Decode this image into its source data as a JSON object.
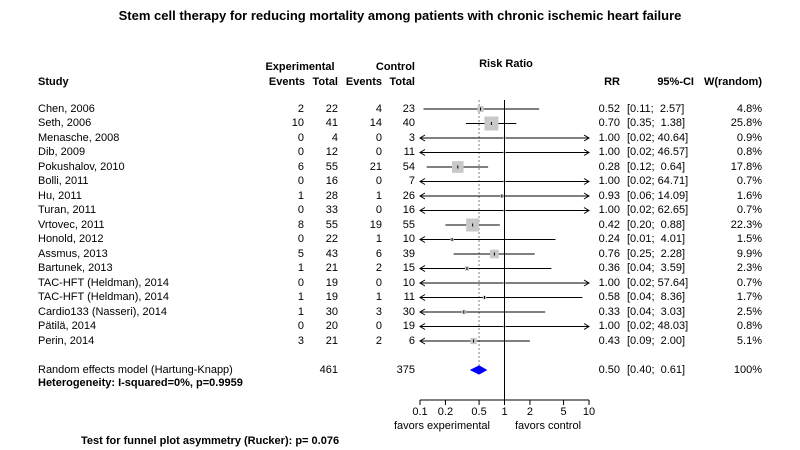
{
  "chart_data": {
    "type": "forest",
    "title": "Stem cell therapy for reducing mortality among patients with chronic ischemic heart failure",
    "header": {
      "study": "Study",
      "experimental": "Experimental",
      "control": "Control",
      "events": "Events",
      "total": "Total",
      "plot": "Risk Ratio",
      "rr": "RR",
      "ci": "95%-CI",
      "weight": "W(random)"
    },
    "studies": [
      {
        "name": "Chen, 2006",
        "e_events": 2,
        "e_total": 22,
        "c_events": 4,
        "c_total": 23,
        "rr": "0.52",
        "ci": "[0.11;  2.57]",
        "weight": "4.8%",
        "rr_val": 0.52,
        "lo": 0.11,
        "hi": 2.57,
        "w": 4.8
      },
      {
        "name": "Seth, 2006",
        "e_events": 10,
        "e_total": 41,
        "c_events": 14,
        "c_total": 40,
        "rr": "0.70",
        "ci": "[0.35;  1.38]",
        "weight": "25.8%",
        "rr_val": 0.7,
        "lo": 0.35,
        "hi": 1.38,
        "w": 25.8
      },
      {
        "name": "Menasche, 2008",
        "e_events": 0,
        "e_total": 4,
        "c_events": 0,
        "c_total": 3,
        "rr": "1.00",
        "ci": "[0.02; 40.64]",
        "weight": "0.9%",
        "rr_val": 1.0,
        "lo": 0.02,
        "hi": 40.64,
        "w": 0.9
      },
      {
        "name": "Dib, 2009",
        "e_events": 0,
        "e_total": 12,
        "c_events": 0,
        "c_total": 11,
        "rr": "1.00",
        "ci": "[0.02; 46.57]",
        "weight": "0.8%",
        "rr_val": 1.0,
        "lo": 0.02,
        "hi": 46.57,
        "w": 0.8
      },
      {
        "name": "Pokushalov, 2010",
        "e_events": 6,
        "e_total": 55,
        "c_events": 21,
        "c_total": 54,
        "rr": "0.28",
        "ci": "[0.12;  0.64]",
        "weight": "17.8%",
        "rr_val": 0.28,
        "lo": 0.12,
        "hi": 0.64,
        "w": 17.8
      },
      {
        "name": "Bolli, 2011",
        "e_events": 0,
        "e_total": 16,
        "c_events": 0,
        "c_total": 7,
        "rr": "1.00",
        "ci": "[0.02; 64.71]",
        "weight": "0.7%",
        "rr_val": 1.0,
        "lo": 0.02,
        "hi": 64.71,
        "w": 0.7
      },
      {
        "name": "Hu, 2011",
        "e_events": 1,
        "e_total": 28,
        "c_events": 1,
        "c_total": 26,
        "rr": "0.93",
        "ci": "[0.06; 14.09]",
        "weight": "1.6%",
        "rr_val": 0.93,
        "lo": 0.06,
        "hi": 14.09,
        "w": 1.6
      },
      {
        "name": "Turan, 2011",
        "e_events": 0,
        "e_total": 33,
        "c_events": 0,
        "c_total": 16,
        "rr": "1.00",
        "ci": "[0.02; 62.65]",
        "weight": "0.7%",
        "rr_val": 1.0,
        "lo": 0.02,
        "hi": 62.65,
        "w": 0.7
      },
      {
        "name": "Vrtovec, 2011",
        "e_events": 8,
        "e_total": 55,
        "c_events": 19,
        "c_total": 55,
        "rr": "0.42",
        "ci": "[0.20;  0.88]",
        "weight": "22.3%",
        "rr_val": 0.42,
        "lo": 0.2,
        "hi": 0.88,
        "w": 22.3
      },
      {
        "name": "Honold, 2012",
        "e_events": 0,
        "e_total": 22,
        "c_events": 1,
        "c_total": 10,
        "rr": "0.24",
        "ci": "[0.01;  4.01]",
        "weight": "1.5%",
        "rr_val": 0.24,
        "lo": 0.01,
        "hi": 4.01,
        "w": 1.5
      },
      {
        "name": "Assmus, 2013",
        "e_events": 5,
        "e_total": 43,
        "c_events": 6,
        "c_total": 39,
        "rr": "0.76",
        "ci": "[0.25;  2.28]",
        "weight": "9.9%",
        "rr_val": 0.76,
        "lo": 0.25,
        "hi": 2.28,
        "w": 9.9
      },
      {
        "name": "Bartunek, 2013",
        "e_events": 1,
        "e_total": 21,
        "c_events": 2,
        "c_total": 15,
        "rr": "0.36",
        "ci": "[0.04;  3.59]",
        "weight": "2.3%",
        "rr_val": 0.36,
        "lo": 0.04,
        "hi": 3.59,
        "w": 2.3
      },
      {
        "name": "TAC-HFT (Heldman), 2014",
        "e_events": 0,
        "e_total": 19,
        "c_events": 0,
        "c_total": 10,
        "rr": "1.00",
        "ci": "[0.02; 57.64]",
        "weight": "0.7%",
        "rr_val": 1.0,
        "lo": 0.02,
        "hi": 57.64,
        "w": 0.7
      },
      {
        "name": "TAC-HFT (Heldman), 2014",
        "e_events": 1,
        "e_total": 19,
        "c_events": 1,
        "c_total": 11,
        "rr": "0.58",
        "ci": "[0.04;  8.36]",
        "weight": "1.7%",
        "rr_val": 0.58,
        "lo": 0.04,
        "hi": 8.36,
        "w": 1.7
      },
      {
        "name": "Cardio133 (Nasseri), 2014",
        "e_events": 1,
        "e_total": 30,
        "c_events": 3,
        "c_total": 30,
        "rr": "0.33",
        "ci": "[0.04;  3.03]",
        "weight": "2.5%",
        "rr_val": 0.33,
        "lo": 0.04,
        "hi": 3.03,
        "w": 2.5
      },
      {
        "name": "Pätilä, 2014",
        "e_events": 0,
        "e_total": 20,
        "c_events": 0,
        "c_total": 19,
        "rr": "1.00",
        "ci": "[0.02; 48.03]",
        "weight": "0.8%",
        "rr_val": 1.0,
        "lo": 0.02,
        "hi": 48.03,
        "w": 0.8
      },
      {
        "name": "Perin, 2014",
        "e_events": 3,
        "e_total": 21,
        "c_events": 2,
        "c_total": 6,
        "rr": "0.43",
        "ci": "[0.09;  2.00]",
        "weight": "5.1%",
        "rr_val": 0.43,
        "lo": 0.09,
        "hi": 2.0,
        "w": 5.1
      }
    ],
    "summary": {
      "name": "Random effects model  (Hartung-Knapp)",
      "e_total": 461,
      "c_total": 375,
      "rr": "0.50",
      "ci": "[0.40;  0.61]",
      "weight": "100%",
      "rr_val": 0.5,
      "lo": 0.4,
      "hi": 0.61
    },
    "heterogeneity": "Heterogeneity: I-squared=0%, p=0.9959",
    "x_ticks": [
      "0.1",
      "0.2",
      "0.5",
      "1",
      "2",
      "5",
      "10"
    ],
    "x_tick_values": [
      0.1,
      0.2,
      0.5,
      1,
      2,
      5,
      10
    ],
    "xlim": [
      0.1,
      10
    ],
    "scale": "log",
    "favors_left": "favors experimental",
    "favors_right": "favors control",
    "funnel_test": "Test for funnel plot asymmetry (Rucker): p= 0.076",
    "colors": {
      "box": "#c8c8c8",
      "diamond": "#0000ff",
      "line": "#000000",
      "reference": "#808080"
    }
  }
}
